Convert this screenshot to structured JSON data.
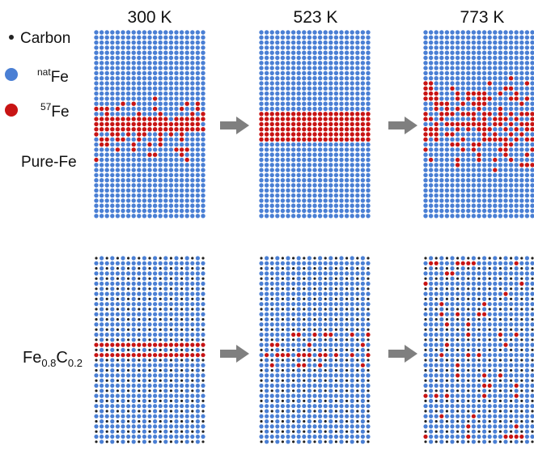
{
  "columns": [
    {
      "temperature": "300 K"
    },
    {
      "temperature": "523 K"
    },
    {
      "temperature": "773 K"
    }
  ],
  "legend": {
    "carbon_label": "Carbon",
    "natfe_sup": "nat",
    "natfe_base": "Fe",
    "fe57_sup": "57",
    "fe57_base": "Fe"
  },
  "rows": [
    {
      "label": "Pure-Fe"
    },
    {
      "label_base": "Fe",
      "label_sub1": "0.8",
      "label_mid": "C",
      "label_sub2": "0.2"
    }
  ],
  "colors": {
    "natfe": "#4a7fd4",
    "fe57": "#c81414",
    "carbon": "#222222",
    "arrow": "#7f7f7f",
    "background": "#ffffff"
  }
}
